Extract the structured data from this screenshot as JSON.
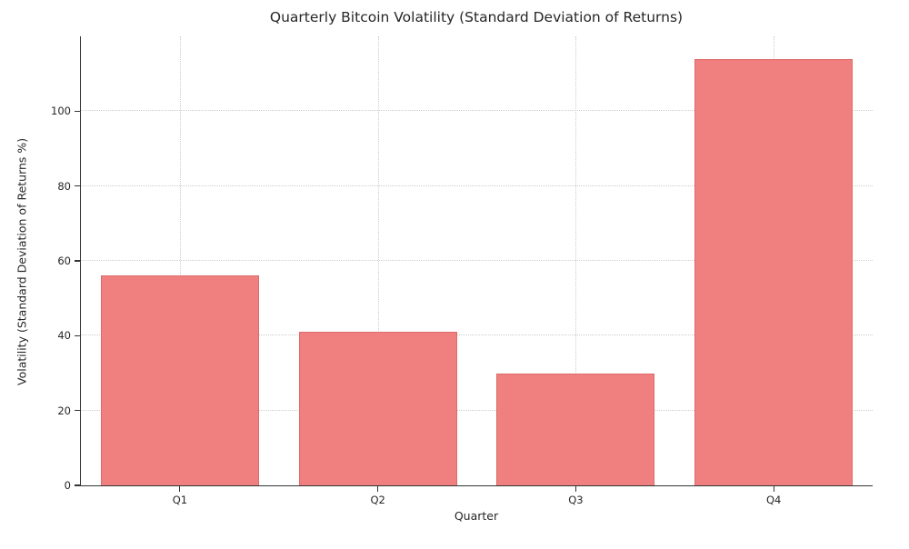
{
  "chart_data": {
    "type": "bar",
    "title": "Quarterly Bitcoin Volatility (Standard Deviation of Returns)",
    "xlabel": "Quarter",
    "ylabel": "Volatility (Standard Deviation of Returns %)",
    "categories": [
      "Q1",
      "Q2",
      "Q3",
      "Q4"
    ],
    "values": [
      56,
      41,
      30,
      114
    ],
    "ylim": [
      0,
      120
    ],
    "yticks": [
      0,
      20,
      40,
      60,
      80,
      100
    ],
    "grid": true,
    "legend": false,
    "bar_width_fraction": 0.8,
    "bar_color": "#f08080",
    "bar_edge_color": "#dd6a6a",
    "grid_color": "#cccccc",
    "axis_color": "#333333",
    "text_color": "#262626",
    "background": "#ffffff"
  }
}
